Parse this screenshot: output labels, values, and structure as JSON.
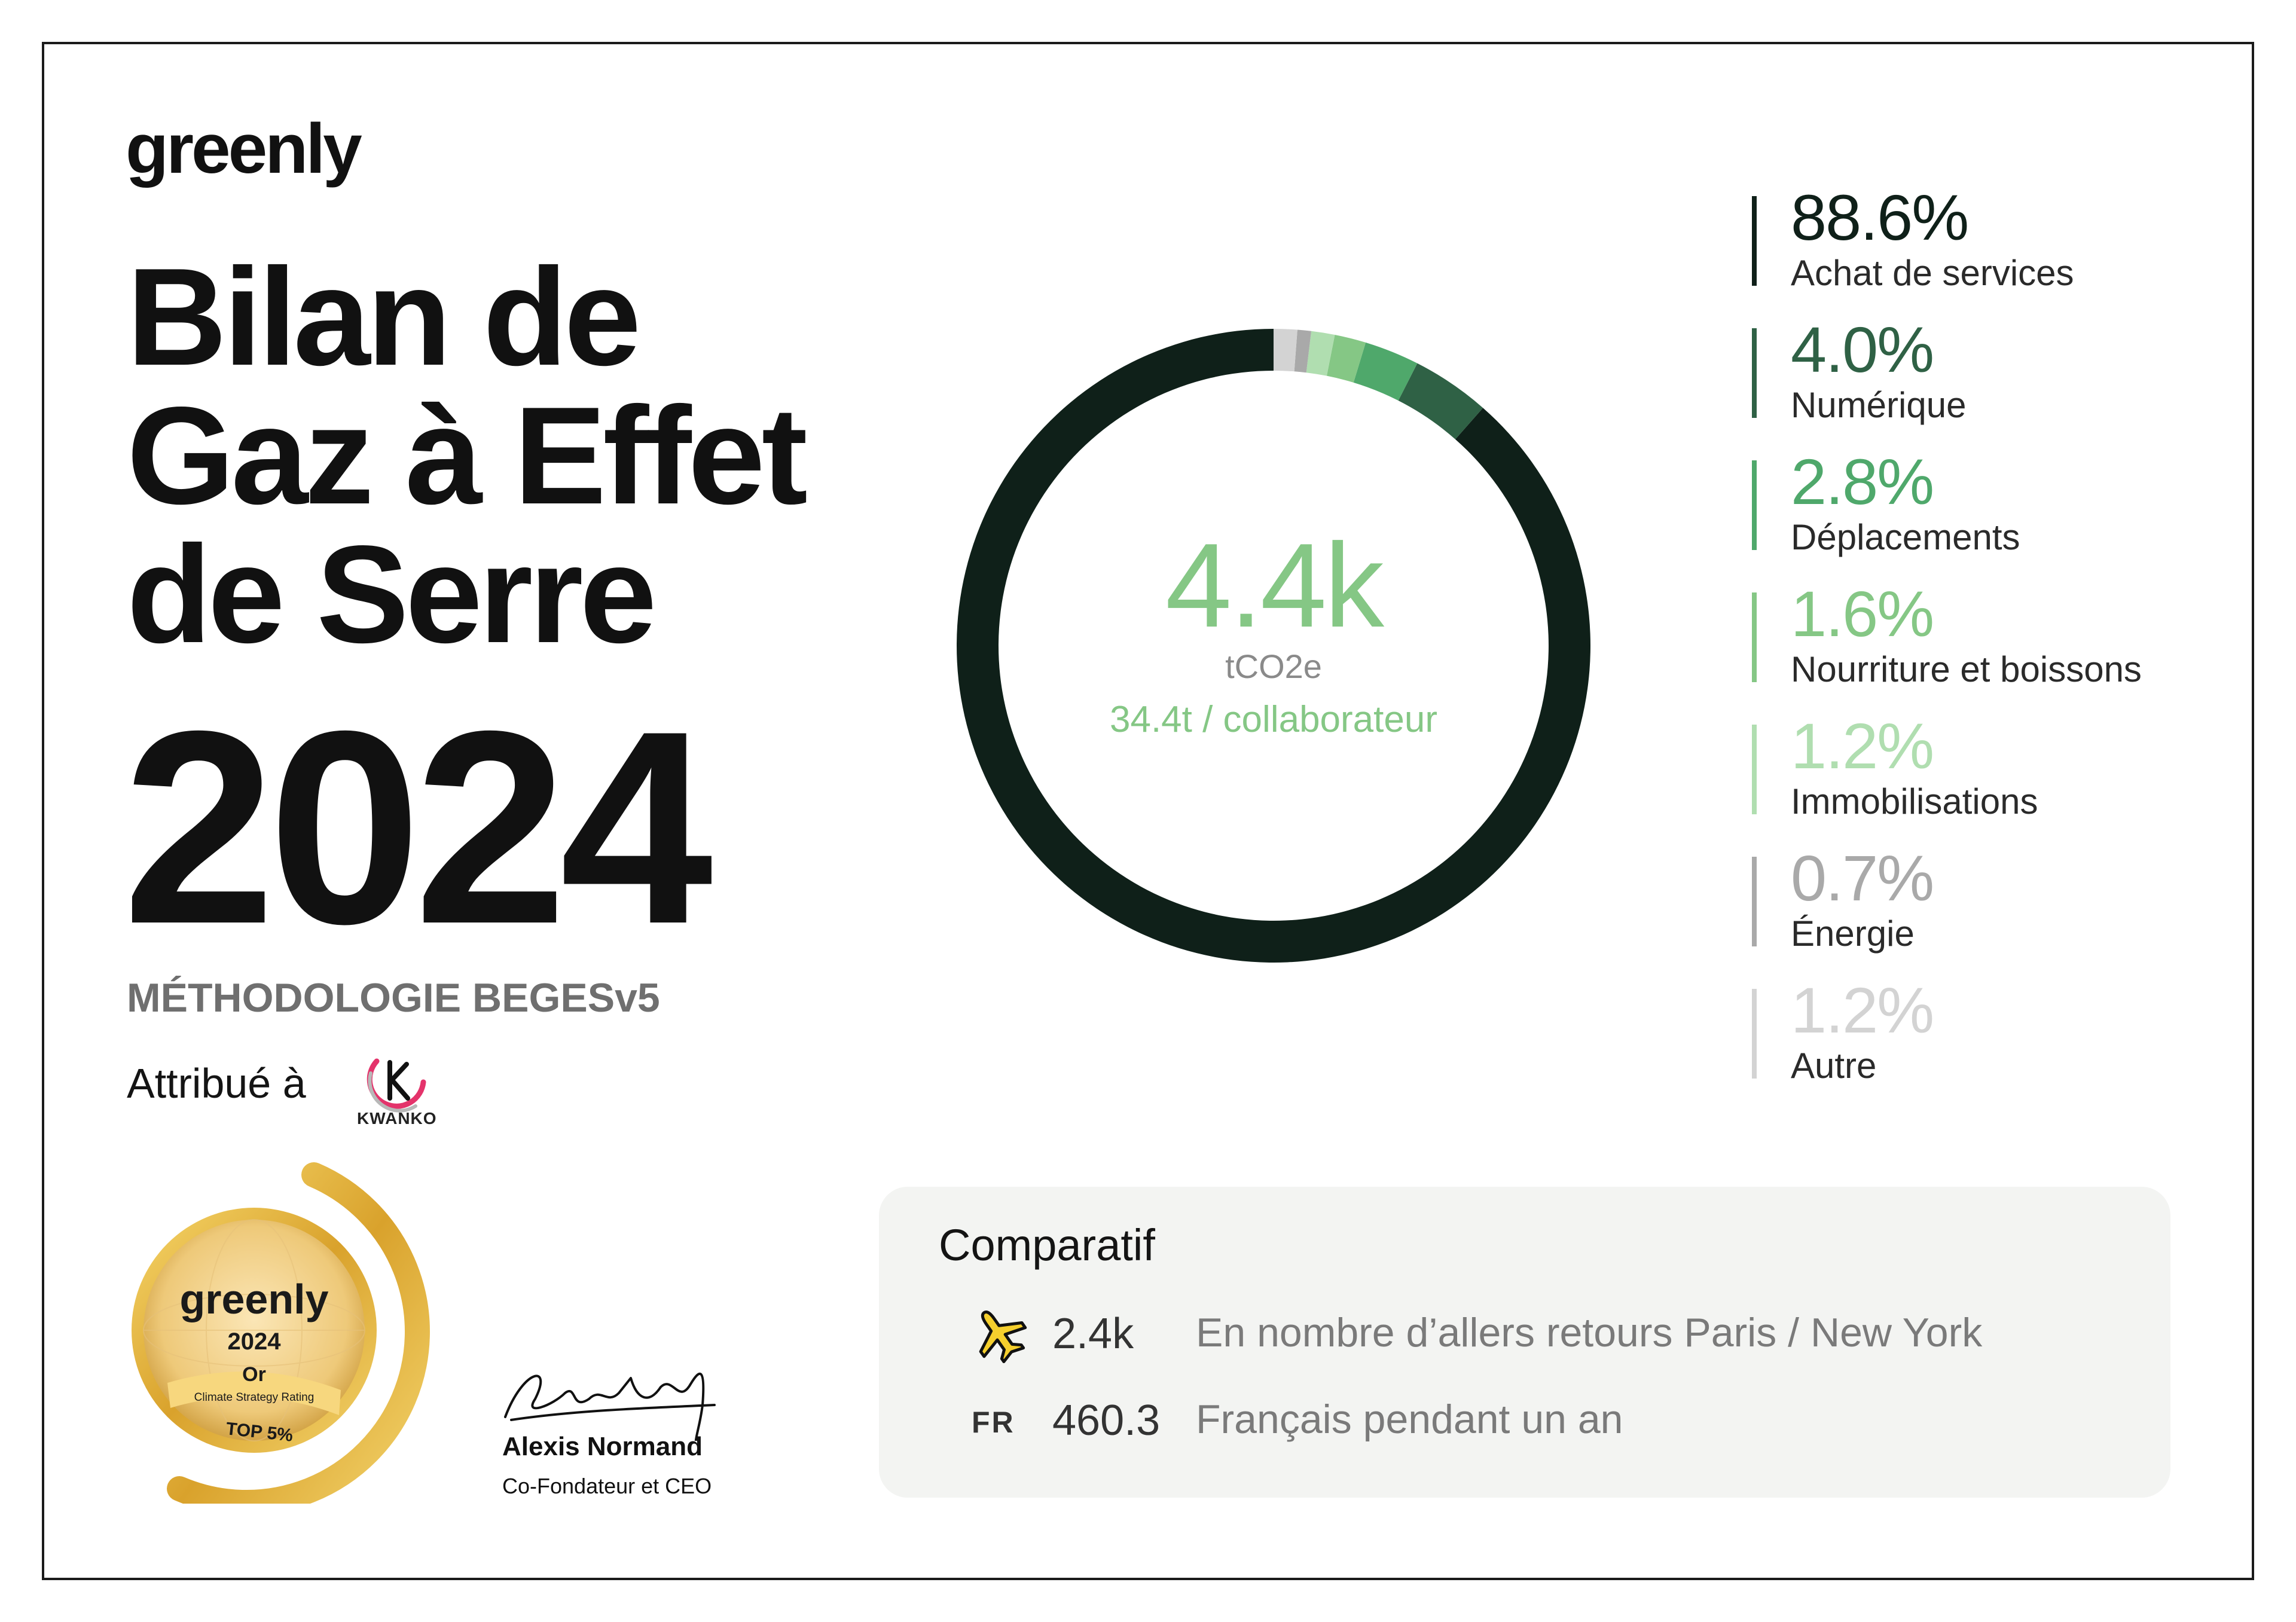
{
  "brand": {
    "logo": "greenly"
  },
  "header": {
    "title_lines": [
      "Bilan de",
      "Gaz à Effet",
      "de Serre"
    ],
    "year": "2024",
    "methodology": "MÉTHODOLOGIE BEGESv5",
    "attributed_to": "Attribué à",
    "client_logo": "KWANKO"
  },
  "badge": {
    "brand": "greenly",
    "year": "2024",
    "level": "Or",
    "rating": "Climate Strategy Rating",
    "rank": "TOP 5%"
  },
  "signature": {
    "name": "Alexis Normand",
    "role": "Co-Fondateur et CEO"
  },
  "chart_data": {
    "type": "pie",
    "style": "donut",
    "center_value": "4.4k",
    "center_unit": "tCO2e",
    "center_subtitle": "34.4t / collaborateur",
    "legend_placement": "right",
    "slices": [
      {
        "label": "Achat de services",
        "value": 88.6,
        "display": "88.6%",
        "color": "#0f2019"
      },
      {
        "label": "Numérique",
        "value": 4.0,
        "display": "4.0%",
        "color": "#2f6145"
      },
      {
        "label": "Déplacements",
        "value": 2.8,
        "display": "2.8%",
        "color": "#4fa86b"
      },
      {
        "label": "Nourriture et boissons",
        "value": 1.6,
        "display": "1.6%",
        "color": "#85c785"
      },
      {
        "label": "Immobilisations",
        "value": 1.2,
        "display": "1.2%",
        "color": "#b0deb0"
      },
      {
        "label": "Énergie",
        "value": 0.7,
        "display": "0.7%",
        "color": "#a9a9a9"
      },
      {
        "label": "Autre",
        "value": 1.2,
        "display": "1.2%",
        "color": "#d3d3d3"
      }
    ]
  },
  "comparatif": {
    "title": "Comparatif",
    "rows": [
      {
        "icon": "airplane-icon",
        "value": "2.4k",
        "label": "En nombre d’allers retours Paris / New York"
      },
      {
        "code": "FR",
        "value": "460.3",
        "label": "Français pendant un an"
      }
    ]
  }
}
